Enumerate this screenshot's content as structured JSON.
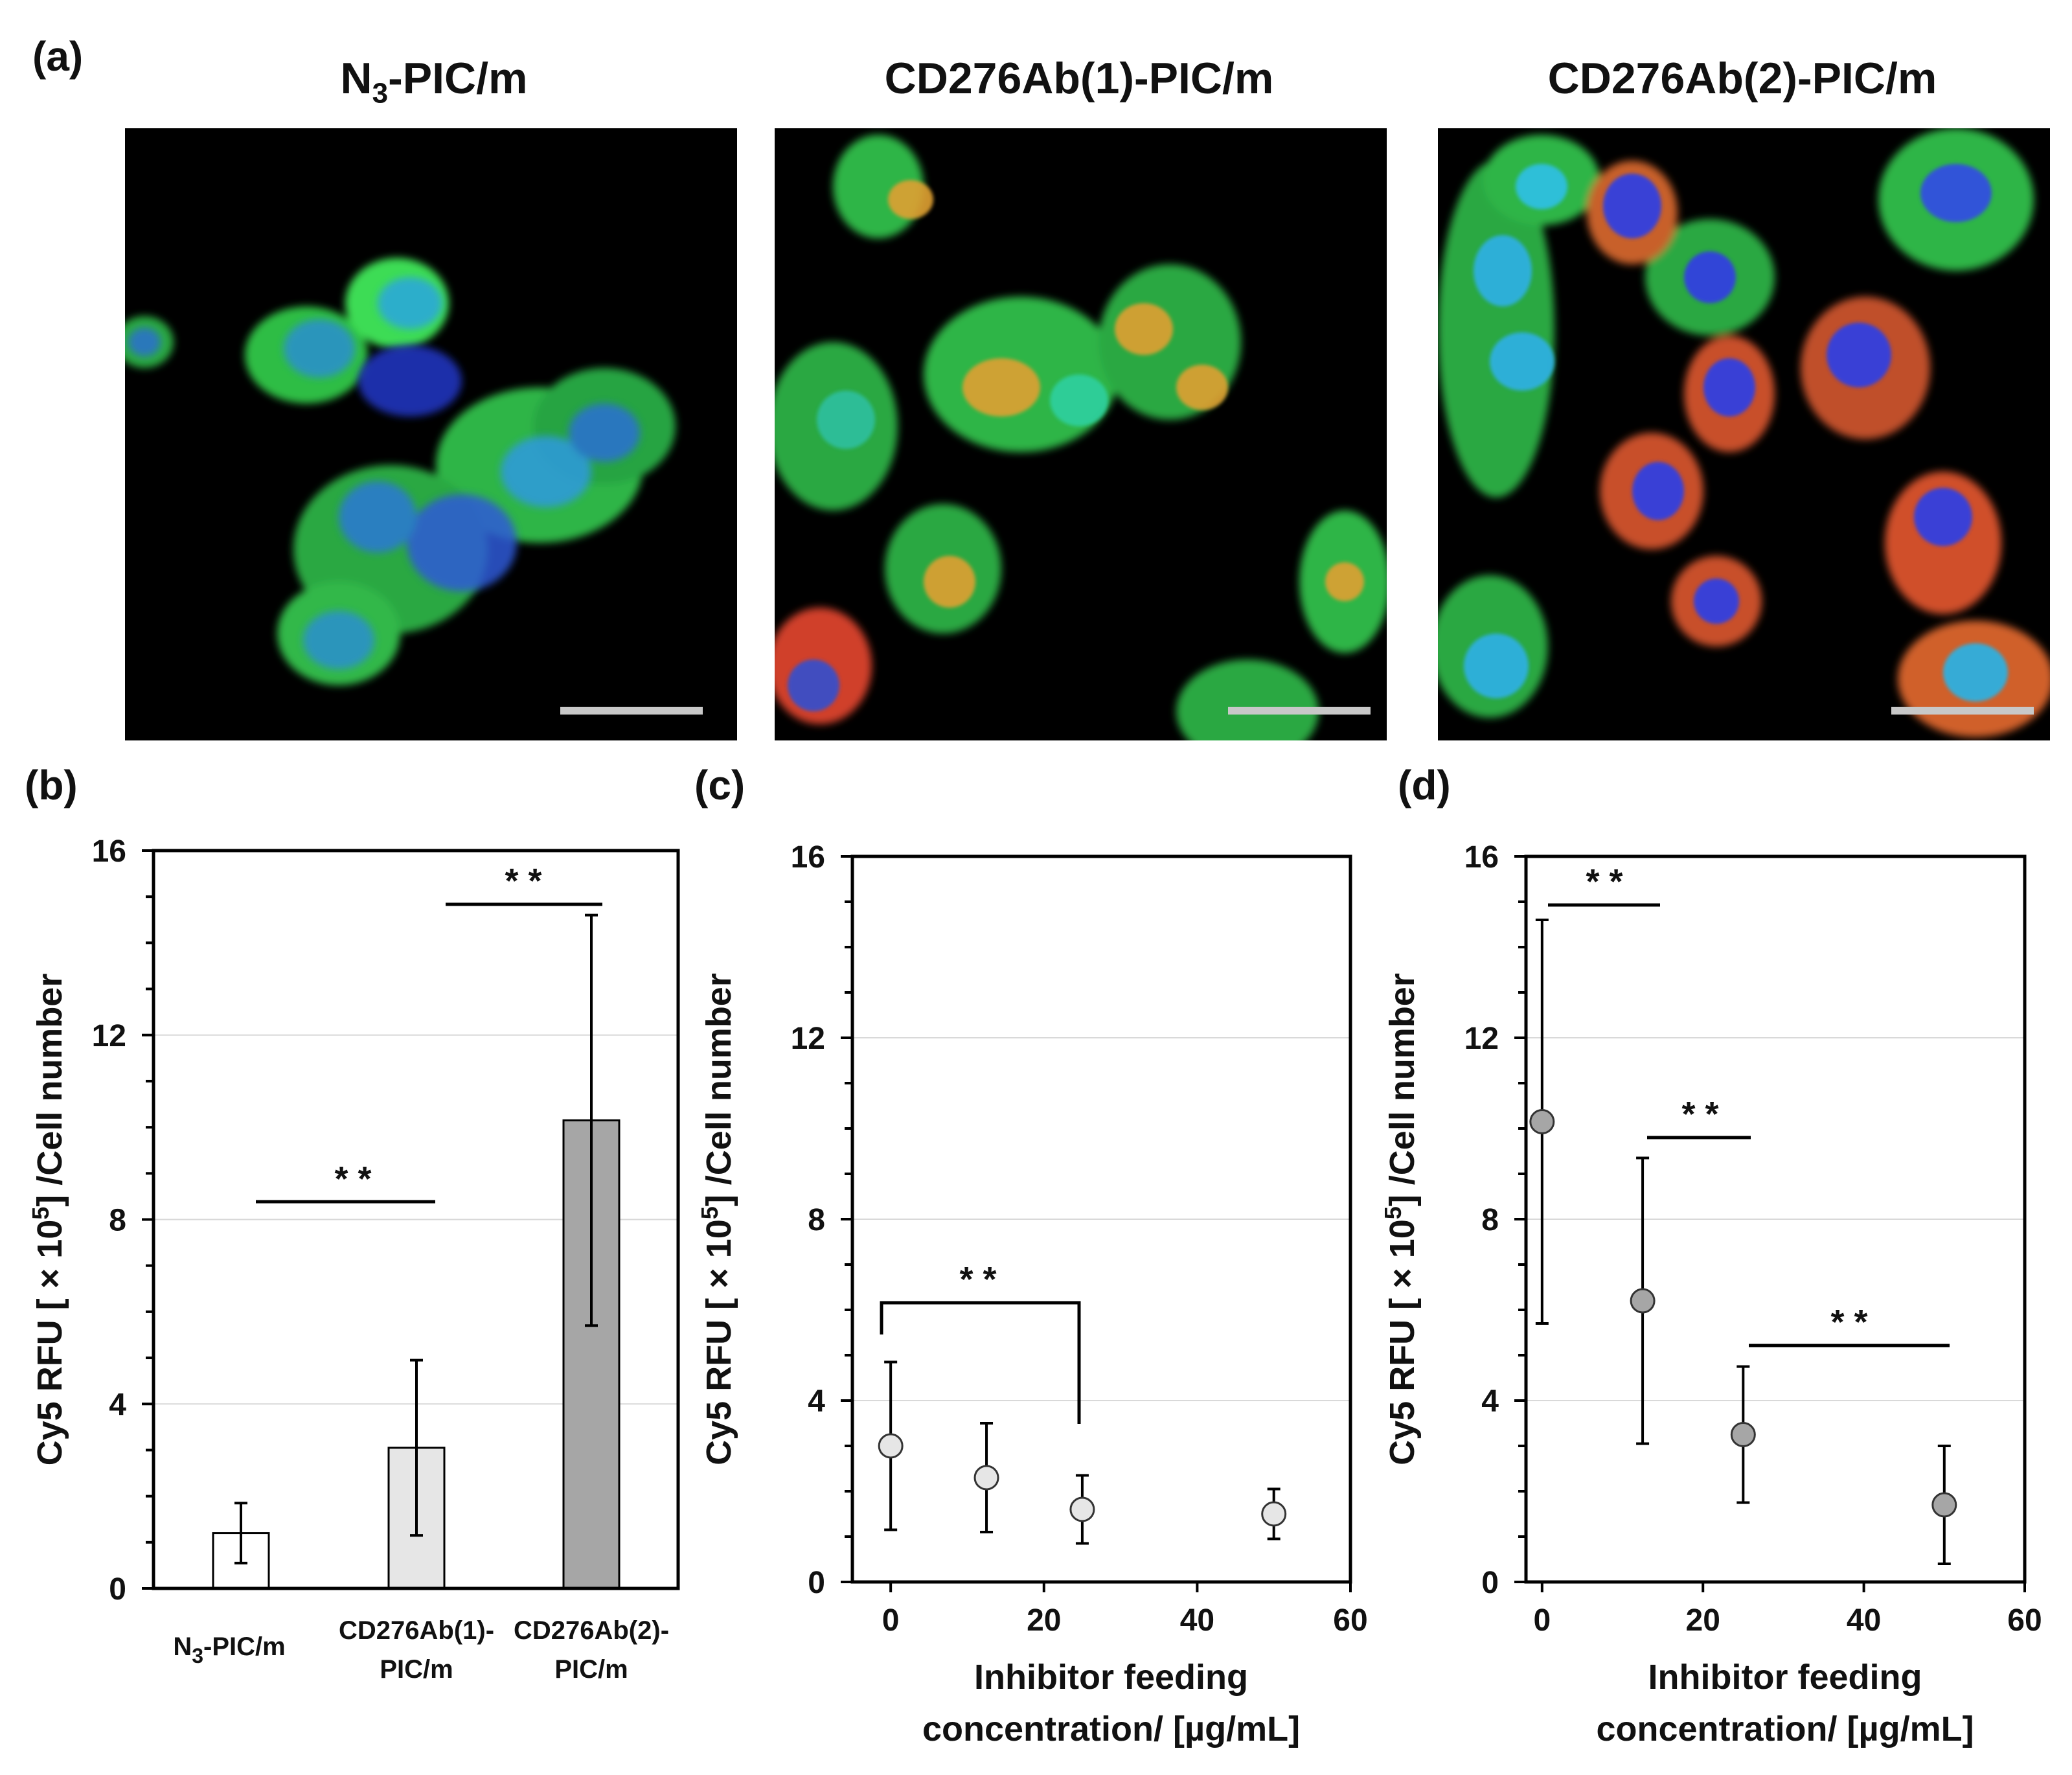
{
  "panels": {
    "a": "(a)",
    "b": "(b)",
    "c": "(c)",
    "d": "(d)"
  },
  "images": [
    {
      "title_main": "N",
      "title_sub": "3",
      "title_rest": "-PIC/m"
    },
    {
      "title_main": "CD276Ab(1)-PIC/m",
      "title_sub": "",
      "title_rest": ""
    },
    {
      "title_main": "CD276Ab(2)-PIC/m",
      "title_sub": "",
      "title_rest": ""
    }
  ],
  "colors": {
    "nucleus": "#2a4cf0",
    "cytoplasm": "#2fc24a",
    "cy5": "#f0502a",
    "bar_b1": "#ffffff",
    "bar_b2": "#e6e6e6",
    "bar_b3": "#a6a6a6",
    "marker_c": "#e6e6e6",
    "marker_d": "#a6a6a6"
  },
  "chart_data": [
    {
      "id": "b",
      "type": "bar",
      "categories": [
        "N3-PIC/m",
        "CD276Ab(1)-PIC/m",
        "CD276Ab(2)-PIC/m"
      ],
      "category_labels": [
        [
          "N",
          "3",
          "-PIC/m"
        ],
        [
          "CD276Ab(1)-",
          "PIC/m"
        ],
        [
          "CD276Ab(2)-",
          "PIC/m"
        ]
      ],
      "values": [
        1.2,
        3.05,
        10.15
      ],
      "errors": [
        0.65,
        1.9,
        4.45
      ],
      "ylabel": "Cy5 RFU [ × 10^5] /Cell number",
      "ylabel_parts": [
        "Cy5 RFU [ × 10",
        "5",
        "] /Cell number"
      ],
      "ylim": [
        0,
        16
      ],
      "yticks": [
        0,
        4,
        8,
        12,
        16
      ],
      "grid": true,
      "significance": [
        {
          "from": 0,
          "to": 1,
          "label": "* *",
          "y": 8.5
        },
        {
          "from": 1,
          "to": 2,
          "label": "* *",
          "y": 15.0
        }
      ]
    },
    {
      "id": "c",
      "type": "scatter",
      "x": [
        0,
        12.5,
        25,
        50
      ],
      "y": [
        3.0,
        2.3,
        1.6,
        1.5
      ],
      "errors": [
        1.85,
        1.2,
        0.75,
        0.55
      ],
      "xlabel": [
        "Inhibitor feeding",
        "concentration/ [µg/mL]"
      ],
      "ylabel": "Cy5 RFU [ × 10^5] /Cell number",
      "ylabel_parts": [
        "Cy5 RFU [ × 10",
        "5",
        "] /Cell number"
      ],
      "xlim": [
        -5,
        60
      ],
      "xticks": [
        0,
        20,
        40,
        60
      ],
      "ylim": [
        0,
        16
      ],
      "yticks": [
        0,
        4,
        8,
        12,
        16
      ],
      "grid": true,
      "significance": [
        {
          "from": 0,
          "to": 25,
          "label": "* *",
          "y": 6.2,
          "bracket": true
        }
      ]
    },
    {
      "id": "d",
      "type": "scatter",
      "x": [
        0,
        12.5,
        25,
        50
      ],
      "y": [
        10.15,
        6.2,
        3.25,
        1.7
      ],
      "errors": [
        4.45,
        3.15,
        1.5,
        1.3
      ],
      "xlabel": [
        "Inhibitor feeding",
        "concentration/ [µg/mL]"
      ],
      "ylabel": "Cy5 RFU [ × 10^5] /Cell number",
      "ylabel_parts": [
        "Cy5 RFU [ × 10",
        "5",
        "] /Cell number"
      ],
      "xlim": [
        -2,
        60
      ],
      "xticks": [
        0,
        20,
        40,
        60
      ],
      "ylim": [
        0,
        16
      ],
      "yticks": [
        0,
        4,
        8,
        12,
        16
      ],
      "grid": true,
      "significance": [
        {
          "from": -1,
          "to": 13,
          "label": "* *",
          "y": 14.9
        },
        {
          "from": 12,
          "to": 25,
          "label": "* *",
          "y": 9.8
        },
        {
          "from": 25,
          "to": 50,
          "label": "* *",
          "y": 5.2
        }
      ]
    }
  ]
}
